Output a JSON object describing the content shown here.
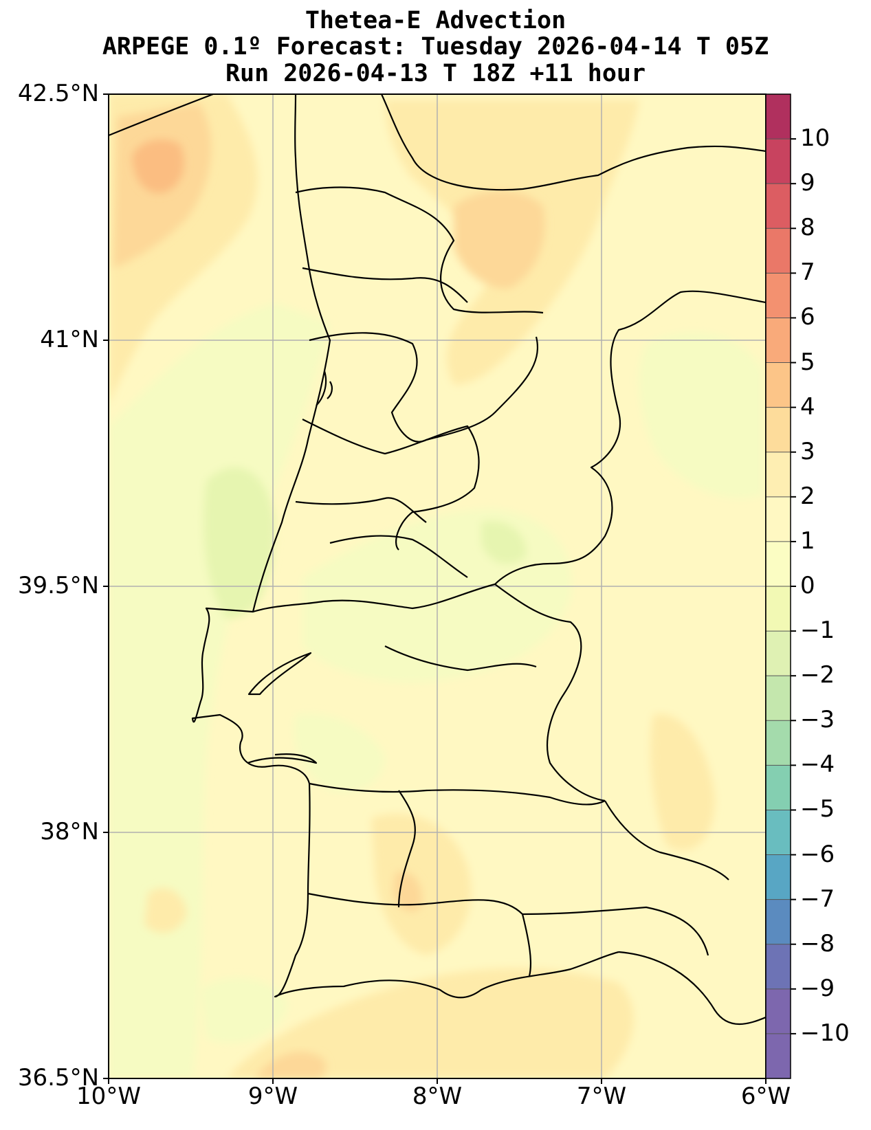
{
  "title": {
    "line1": "Thetea-E Advection",
    "line2": "ARPEGE 0.1º Forecast: Tuesday 2026-04-14 T 05Z",
    "line3": "Run 2026-04-13 T 18Z +11 hour"
  },
  "map": {
    "lon_range": [
      -10,
      -6
    ],
    "lat_range": [
      36.5,
      42.5
    ],
    "lat_ticks": [
      {
        "value": 42.5,
        "label": "42.5°N"
      },
      {
        "value": 41.0,
        "label": "41°N"
      },
      {
        "value": 39.5,
        "label": "39.5°N"
      },
      {
        "value": 38.0,
        "label": "38°N"
      },
      {
        "value": 36.5,
        "label": "36.5°N"
      }
    ],
    "lon_ticks": [
      {
        "value": -10,
        "label": "10°W"
      },
      {
        "value": -9,
        "label": "9°W"
      },
      {
        "value": -8,
        "label": "8°W"
      },
      {
        "value": -7,
        "label": "7°W"
      },
      {
        "value": -6,
        "label": "6°W"
      }
    ],
    "grid": true,
    "field_colors": {
      "neg3": "#d3ecb0",
      "neg2": "#e6f5b0",
      "neg1": "#f6fbc2",
      "zero": "#fff8c2",
      "pos1": "#feebaa",
      "pos2": "#fdd898",
      "pos3": "#fbbd81"
    }
  },
  "colorbar": {
    "levels": [
      10,
      9,
      8,
      7,
      6,
      5,
      4,
      3,
      2,
      1,
      0,
      -1,
      -2,
      -3,
      -4,
      -5,
      -6,
      -7,
      -8,
      -9,
      -10
    ],
    "labels": [
      "10",
      "9",
      "8",
      "7",
      "6",
      "5",
      "4",
      "3",
      "2",
      "1",
      "0",
      "−1",
      "−2",
      "−3",
      "−4",
      "−5",
      "−6",
      "−7",
      "−8",
      "−9",
      "−10"
    ],
    "colors": [
      "#b0305e",
      "#c8435f",
      "#dc5d62",
      "#ea7868",
      "#f39170",
      "#f9aa7a",
      "#fcc588",
      "#fddc9b",
      "#feeeb2",
      "#fff8c2",
      "#fbfdc3",
      "#f2f9b4",
      "#dff1b3",
      "#c4e7ad",
      "#a4dbac",
      "#84cfb1",
      "#69bdbf",
      "#58a6c4",
      "#5b8bbf",
      "#6d73b5",
      "#7d67ae"
    ]
  }
}
